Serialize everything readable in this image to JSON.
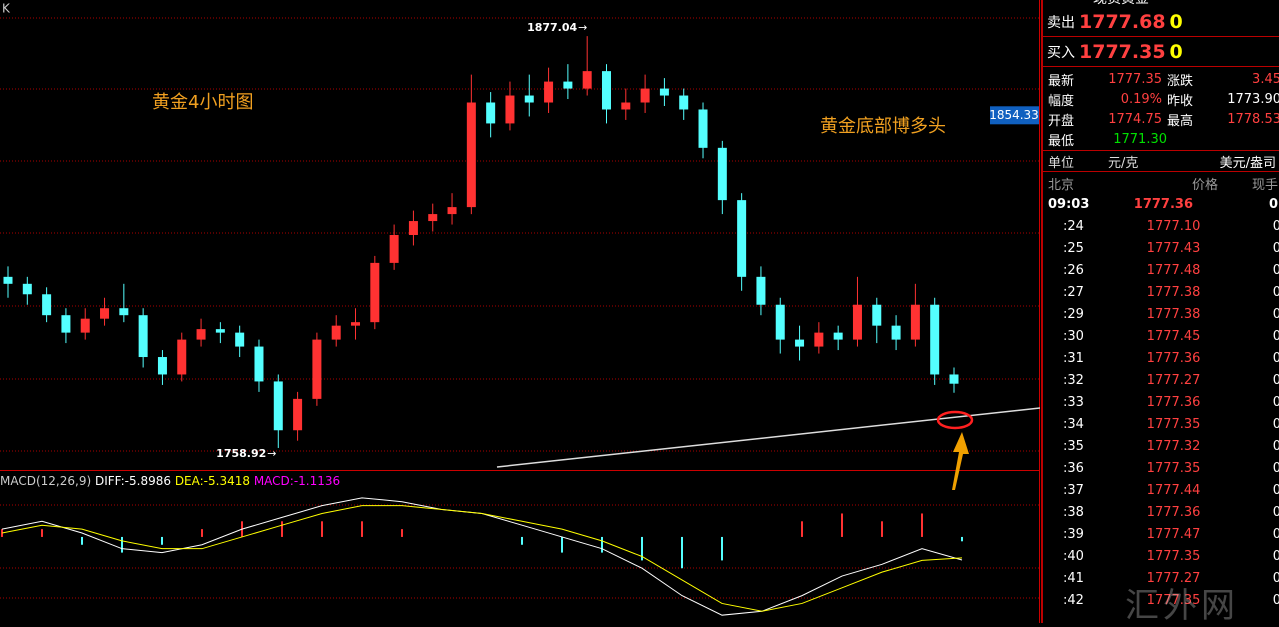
{
  "chart_data": {
    "type": "candlestick",
    "label_k": "K",
    "annotations": [
      "黄金4小时图",
      "黄金底部博多头"
    ],
    "ylim": [
      1752.6,
      1887.4
    ],
    "last_price_label": 1854.33,
    "up_color": "#ff3232",
    "down_color": "#54ffff",
    "open": [
      1808,
      1806,
      1803,
      1797,
      1792,
      1796,
      1799,
      1797,
      1785,
      1780,
      1790,
      1793,
      1792,
      1788,
      1778,
      1764,
      1773,
      1790,
      1794,
      1795,
      1812,
      1820,
      1824,
      1826,
      1828,
      1858,
      1852,
      1860,
      1858,
      1864,
      1862,
      1867,
      1856,
      1858,
      1862,
      1860,
      1856,
      1845,
      1830,
      1808,
      1800,
      1790,
      1788,
      1792,
      1790,
      1800,
      1794,
      1790,
      1800,
      1780
    ],
    "high": [
      1811,
      1808,
      1805,
      1799,
      1799,
      1802,
      1806,
      1799,
      1787,
      1792,
      1796,
      1795,
      1794,
      1790,
      1780,
      1775,
      1792,
      1797,
      1799,
      1814,
      1823,
      1827,
      1829,
      1832,
      1866,
      1861,
      1864,
      1866,
      1868,
      1869,
      1877.04,
      1869,
      1862,
      1866,
      1865,
      1862,
      1858,
      1847,
      1832,
      1811,
      1802,
      1794,
      1795,
      1794,
      1808,
      1802,
      1797,
      1806,
      1802,
      1782
    ],
    "low": [
      1802,
      1800,
      1795,
      1789,
      1790,
      1794,
      1795,
      1782,
      1777,
      1778,
      1788,
      1789,
      1785,
      1775,
      1758.92,
      1761,
      1771,
      1788,
      1790,
      1793,
      1810,
      1817,
      1821,
      1823,
      1826,
      1848,
      1850,
      1854,
      1855,
      1859,
      1860,
      1852,
      1853,
      1855,
      1857,
      1853,
      1842,
      1826,
      1804,
      1797,
      1786,
      1784,
      1786,
      1787,
      1788,
      1789,
      1787,
      1788,
      1777,
      1774.75
    ],
    "close": [
      1806,
      1803,
      1797,
      1792,
      1796,
      1799,
      1797,
      1785,
      1780,
      1790,
      1793,
      1792,
      1788,
      1778,
      1764,
      1773,
      1790,
      1794,
      1795,
      1812,
      1820,
      1824,
      1826,
      1828,
      1858,
      1852,
      1860,
      1858,
      1864,
      1862,
      1867,
      1856,
      1858,
      1862,
      1860,
      1856,
      1845,
      1830,
      1808,
      1800,
      1790,
      1788,
      1792,
      1790,
      1800,
      1794,
      1790,
      1800,
      1780,
      1777.35
    ],
    "macd": {
      "title": "MACD(12,26,9)",
      "diff_label": "DIFF:-5.8986",
      "dea_label": "DEA:-5.3418",
      "macd_label": "MACD:-1.1136",
      "ylim": [
        -22,
        12
      ],
      "diff_color": "#ffffff",
      "dea_color": "#ffff00",
      "diff": [
        2,
        4,
        1,
        -3,
        -4,
        -2,
        2,
        5,
        8,
        10,
        9,
        7,
        6,
        3,
        0,
        -3,
        -8,
        -15,
        -20,
        -19,
        -15,
        -10,
        -7,
        -3,
        -5.8986
      ],
      "dea": [
        1,
        3,
        2,
        -1,
        -3,
        -3,
        0,
        3,
        6,
        8,
        8,
        7,
        6,
        4,
        2,
        -1,
        -5,
        -11,
        -17,
        -19,
        -17,
        -13,
        -9,
        -6,
        -5.3418
      ],
      "hist": [
        2,
        2,
        -2,
        -4,
        -2,
        2,
        4,
        4,
        4,
        4,
        2,
        0,
        0,
        -2,
        -4,
        -4,
        -6,
        -8,
        -6,
        0,
        4,
        6,
        4,
        6,
        -1.1136
      ]
    }
  },
  "quote_panel": {
    "title": "现货黄金",
    "sell_label": "卖出",
    "sell": "1777.68",
    "sell_vol": "0",
    "buy_label": "买入",
    "buy": "1777.35",
    "buy_vol": "0",
    "stats": [
      [
        "最新",
        "1777.35",
        "涨跌",
        "3.45"
      ],
      [
        "幅度",
        "0.19%",
        "昨收",
        "1773.90"
      ],
      [
        "开盘",
        "1774.75",
        "最高",
        "1778.53"
      ],
      [
        "最低",
        "1771.30"
      ]
    ],
    "unit_label": "单位",
    "unit": "元/克",
    "unit_alt": "美元/盎司",
    "ticks_header": [
      "北京",
      "价格",
      "现手"
    ],
    "ticks": [
      [
        "09:03",
        "1777.36",
        "0"
      ],
      [
        ":24",
        "1777.10",
        "0"
      ],
      [
        ":25",
        "1777.43",
        "0"
      ],
      [
        ":26",
        "1777.48",
        "0"
      ],
      [
        ":27",
        "1777.38",
        "0"
      ],
      [
        ":29",
        "1777.38",
        "0"
      ],
      [
        ":30",
        "1777.45",
        "0"
      ],
      [
        ":31",
        "1777.36",
        "0"
      ],
      [
        ":32",
        "1777.27",
        "0"
      ],
      [
        ":33",
        "1777.36",
        "0"
      ],
      [
        ":34",
        "1777.35",
        "0"
      ],
      [
        ":35",
        "1777.32",
        "0"
      ],
      [
        ":36",
        "1777.35",
        "0"
      ],
      [
        ":37",
        "1777.44",
        "0"
      ],
      [
        ":38",
        "1777.36",
        "0"
      ],
      [
        ":39",
        "1777.47",
        "0"
      ],
      [
        ":40",
        "1777.35",
        "0"
      ],
      [
        ":41",
        "1777.27",
        "0"
      ],
      [
        ":42",
        "1777.35",
        "0"
      ]
    ]
  },
  "watermark": "汇外网"
}
